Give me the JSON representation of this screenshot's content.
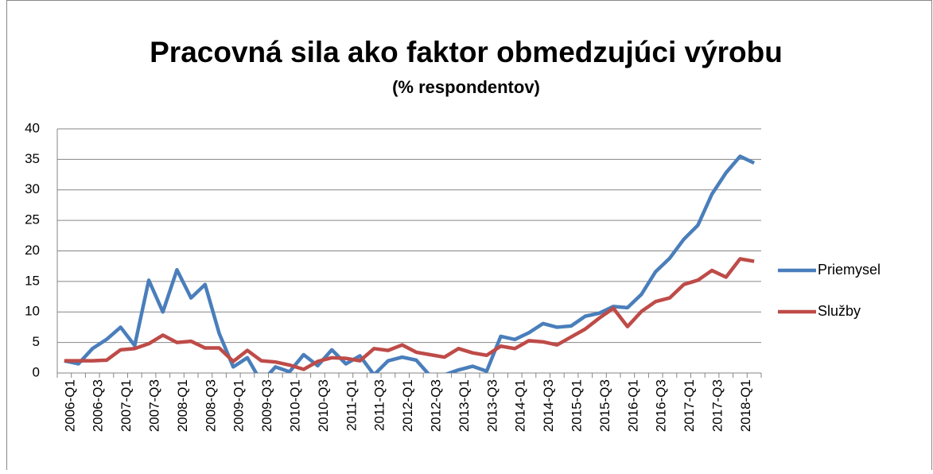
{
  "chart_data": {
    "type": "line",
    "title": "Pracovná sila ako faktor obmedzujúci výrobu",
    "subtitle": "(% respondentov)",
    "categories": [
      "2006-Q1",
      null,
      "2006-Q3",
      null,
      "2007-Q1",
      null,
      "2007-Q3",
      null,
      "2008-Q1",
      null,
      "2008-Q3",
      null,
      "2009-Q1",
      null,
      "2009-Q3",
      null,
      "2010-Q1",
      null,
      "2010-Q3",
      null,
      "2011-Q1",
      null,
      "2011-Q3",
      null,
      "2012-Q1",
      null,
      "2012-Q3",
      null,
      "2013-Q1",
      null,
      "2013-Q3",
      null,
      "2014-Q1",
      null,
      "2014-Q3",
      null,
      "2015-Q1",
      null,
      "2015-Q3",
      null,
      "2016-Q1",
      null,
      "2016-Q3",
      null,
      "2017-Q1",
      null,
      "2017-Q3",
      null,
      "2018-Q1",
      null
    ],
    "series": [
      {
        "name": "Priemysel",
        "color": "#4a7ebb",
        "values": [
          2,
          1.5,
          4,
          5.5,
          7.5,
          4.5,
          15.2,
          10,
          16.9,
          12.3,
          14.5,
          6.5,
          1,
          2.5,
          -1.5,
          1,
          0.2,
          3,
          1.2,
          3.8,
          1.5,
          2.8,
          -0.3,
          2,
          2.6,
          2.1,
          -0.5,
          -0.3,
          0.5,
          1.1,
          0.3,
          6,
          5.5,
          6.6,
          8.1,
          7.5,
          7.7,
          9.3,
          9.8,
          10.9,
          10.7,
          12.9,
          16.6,
          18.8,
          21.9,
          24.2,
          29.3,
          32.8,
          35.5,
          34.4
        ]
      },
      {
        "name": "Služby",
        "color": "#be4b48",
        "values": [
          2,
          2,
          2,
          2.1,
          3.8,
          4,
          4.8,
          6.2,
          5,
          5.2,
          4.1,
          4.1,
          1.9,
          3.7,
          2,
          1.8,
          1.3,
          0.6,
          1.9,
          2.5,
          2.4,
          2,
          4,
          3.7,
          4.6,
          3.4,
          3,
          2.6,
          4,
          3.3,
          2.9,
          4.4,
          4,
          5.3,
          5.1,
          4.6,
          5.9,
          7.2,
          9,
          10.6,
          7.6,
          10.1,
          11.7,
          12.3,
          14.5,
          15.2,
          16.8,
          15.7,
          18.7,
          18.3
        ]
      }
    ],
    "ylim": [
      0,
      40
    ],
    "yticks": [
      0,
      5,
      10,
      15,
      20,
      25,
      30,
      35,
      40
    ],
    "grid": true,
    "legend": "right"
  }
}
